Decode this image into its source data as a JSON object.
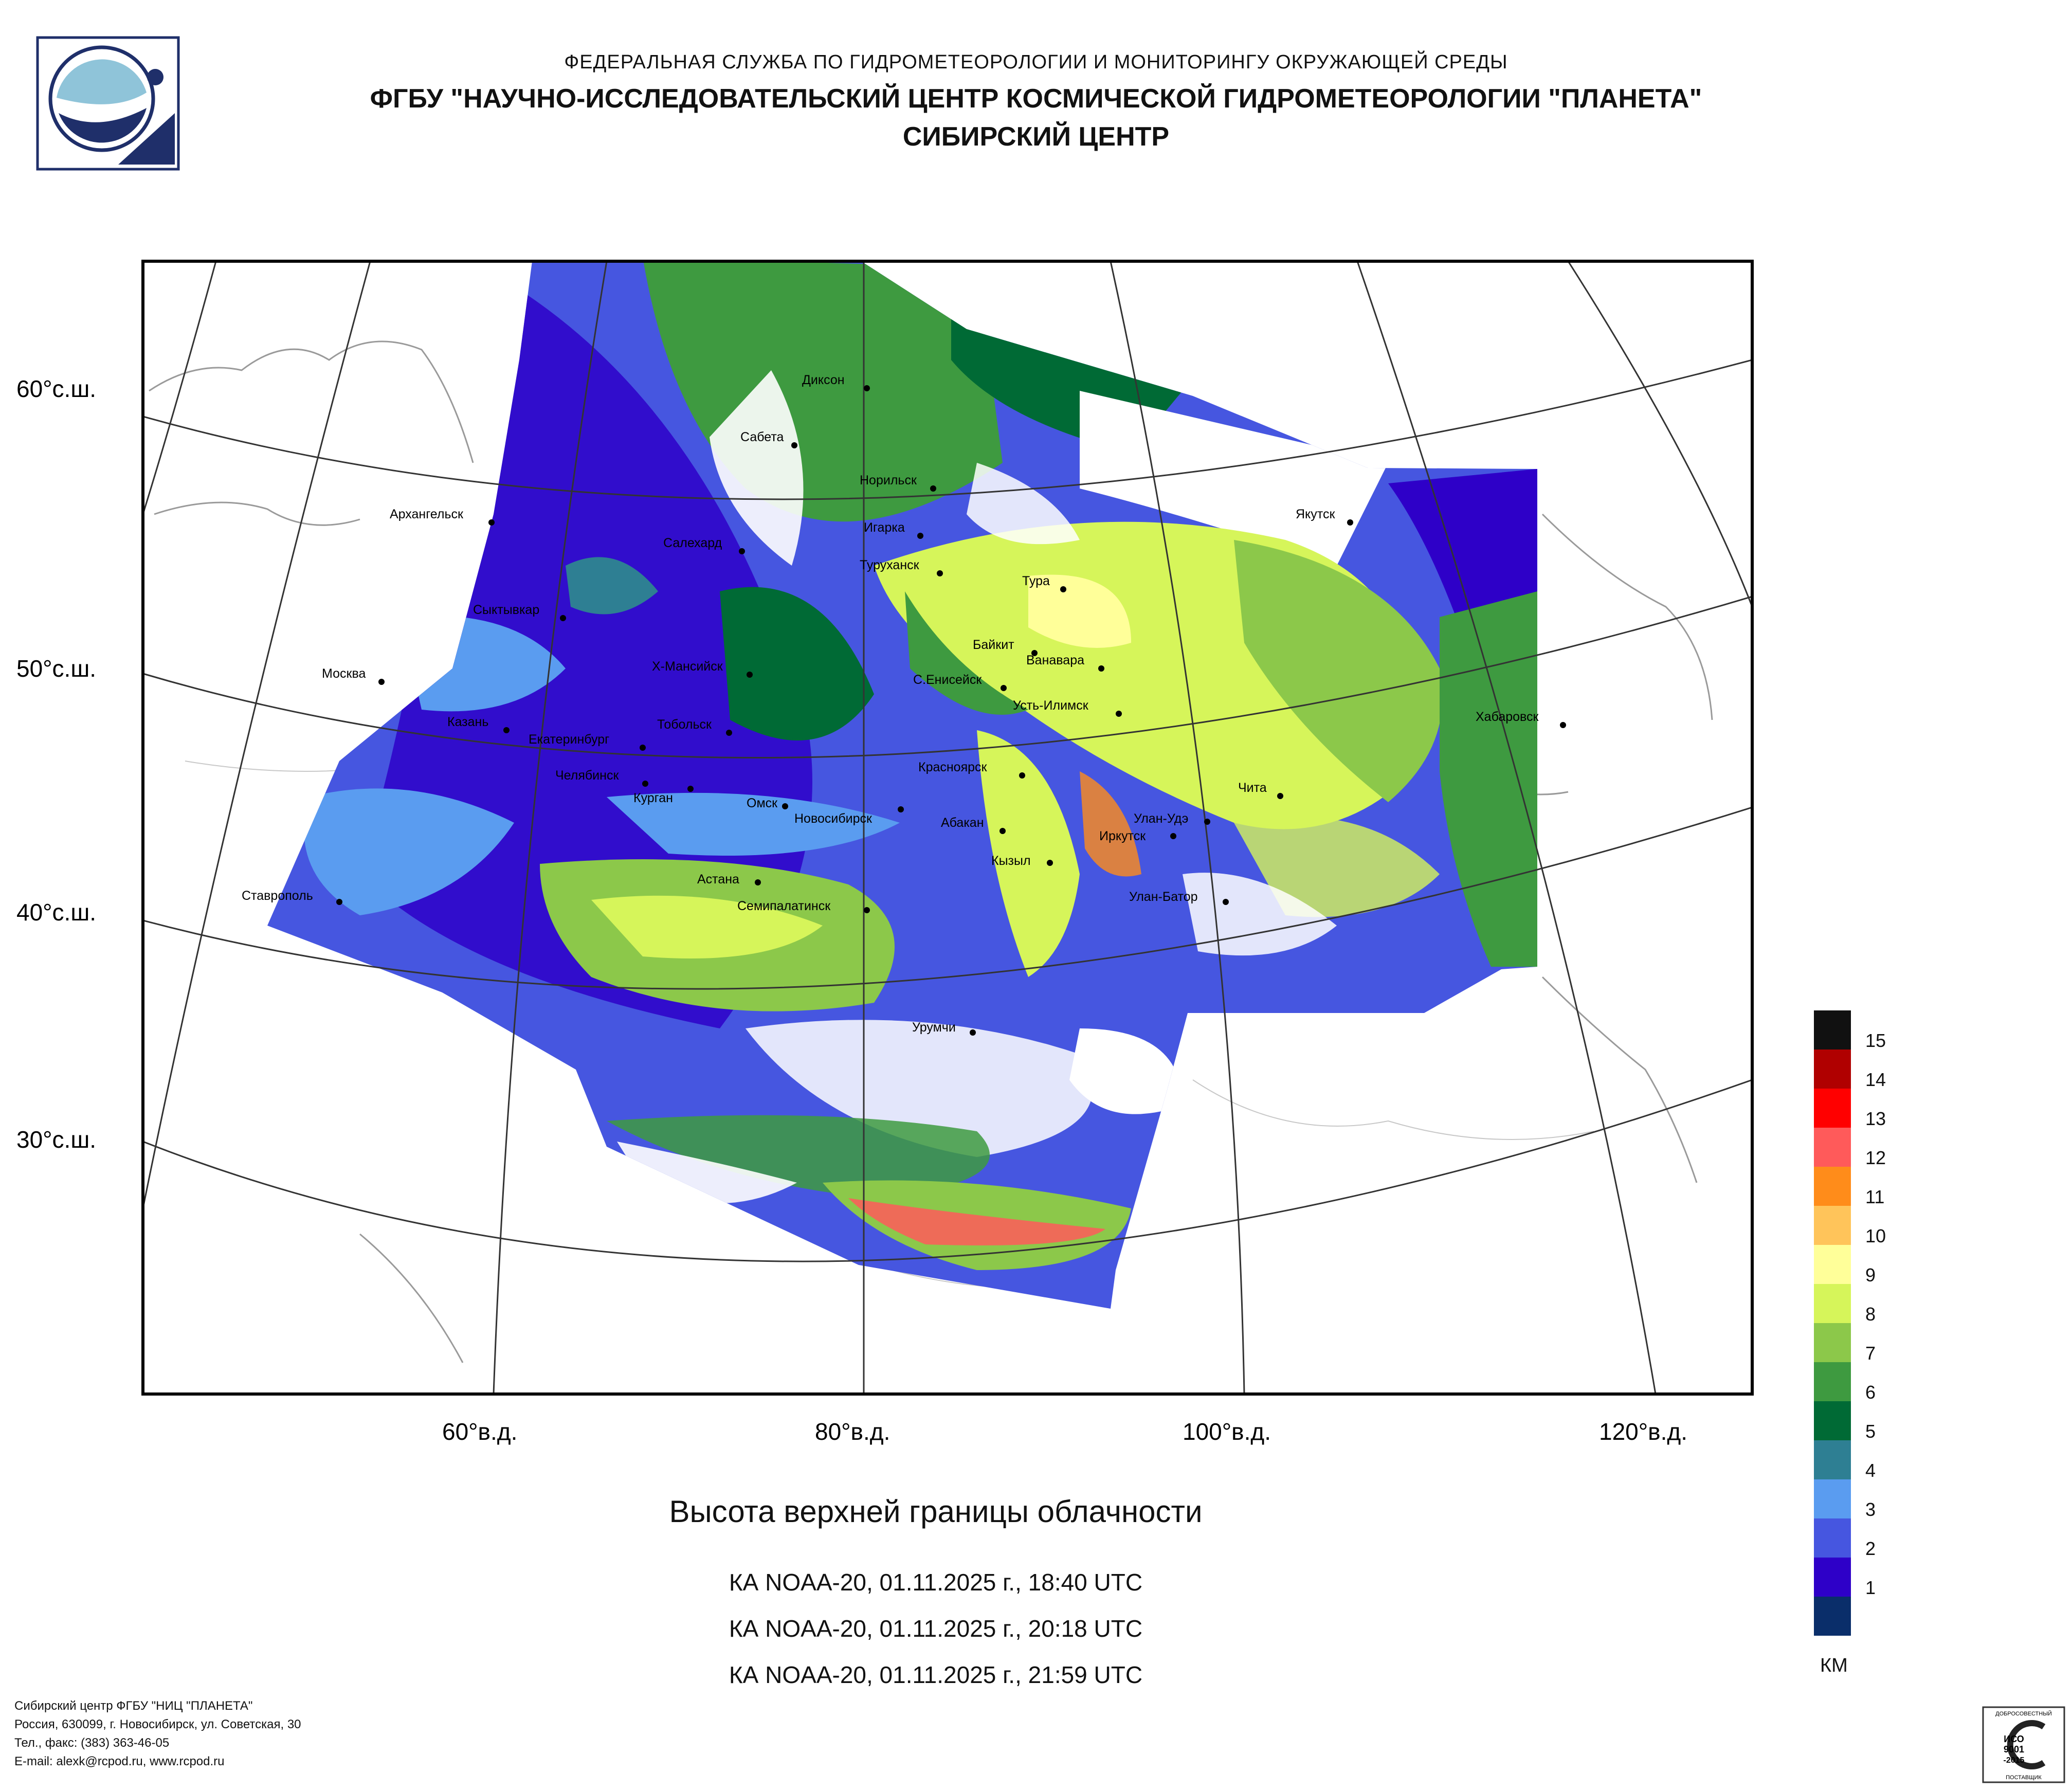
{
  "header": {
    "line1": "ФЕДЕРАЛЬНАЯ СЛУЖБА ПО ГИДРОМЕТЕОРОЛОГИИ И МОНИТОРИНГУ ОКРУЖАЮЩЕЙ СРЕДЫ",
    "line2": "ФГБУ \"НАУЧНО-ИССЛЕДОВАТЕЛЬСКИЙ ЦЕНТР КОСМИЧЕСКОЙ ГИДРОМЕТЕОРОЛОГИИ \"ПЛАНЕТА\"",
    "line3": "СИБИРСКИЙ ЦЕНТР"
  },
  "map": {
    "lat_labels": [
      "60°с.ш.",
      "50°с.ш.",
      "40°с.ш.",
      "30°с.ш."
    ],
    "lon_labels": [
      "60°в.д.",
      "80°в.д.",
      "100°в.д.",
      "120°в.д."
    ],
    "cities": [
      "Диксон",
      "Сабета",
      "Норильск",
      "Игарка",
      "Архангельск",
      "Салехард",
      "Туруханск",
      "Тура",
      "Якутск",
      "Сыктывкар",
      "Байкит",
      "Ванавара",
      "Москва",
      "Х-Мансийск",
      "С.Енисейск",
      "Усть-Илимск",
      "Хабаровск",
      "Казань",
      "Тобольск",
      "Екатеринбург",
      "Красноярск",
      "Челябинск",
      "Курган",
      "Чита",
      "Омск",
      "Новосибирск",
      "Абакан",
      "Улан-Удэ",
      "Иркутск",
      "Кызыл",
      "Ставрополь",
      "Астана",
      "Улан-Батор",
      "Семипалатинск",
      "Урумчи"
    ]
  },
  "title": "Высота верхней границы облачности",
  "passes": [
    "КА NOAA-20, 01.11.2025 г., 18:40 UTC",
    "КА NOAA-20, 01.11.2025 г., 20:18 UTC",
    "КА NOAA-20, 01.11.2025 г., 21:59 UTC"
  ],
  "legend": {
    "unit": "КМ",
    "levels": [
      {
        "label": "15",
        "color": "#111111"
      },
      {
        "label": "14",
        "color": "#b00000"
      },
      {
        "label": "13",
        "color": "#ff0000"
      },
      {
        "label": "12",
        "color": "#ff5a5a"
      },
      {
        "label": "11",
        "color": "#ff8c1a"
      },
      {
        "label": "10",
        "color": "#ffc45a"
      },
      {
        "label": "9",
        "color": "#ffff99"
      },
      {
        "label": "8",
        "color": "#d6f55a"
      },
      {
        "label": "7",
        "color": "#8cc84a"
      },
      {
        "label": "6",
        "color": "#3e9a40"
      },
      {
        "label": "5",
        "color": "#006a35"
      },
      {
        "label": "4",
        "color": "#2e7f93"
      },
      {
        "label": "3",
        "color": "#5a9cf0"
      },
      {
        "label": "2",
        "color": "#4656e0"
      },
      {
        "label": "1",
        "color": "#2e00c8"
      },
      {
        "label": "",
        "color": "#0a2e6a"
      }
    ]
  },
  "footer": {
    "org": "Сибирский центр ФГБУ \"НИЦ \"ПЛАНЕТА\"",
    "address": "Россия, 630099, г. Новосибирск, ул. Советская, 30",
    "phone": "Тел., факс: (383) 363-46-05",
    "email": "E-mail: alexk@rcpod.ru, www.rcpod.ru"
  },
  "certificate": {
    "top": "ДОБРОСОВЕСТНЫЙ",
    "std1": "ИСО",
    "std2": "9001",
    "std3": "-2015",
    "bottom": "ПОСТАВЩИК"
  }
}
